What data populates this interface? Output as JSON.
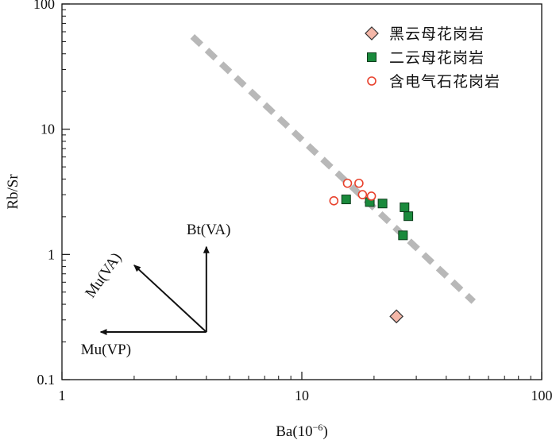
{
  "chart_data": {
    "type": "scatter",
    "xscale": "log",
    "yscale": "log",
    "xlim": [
      1,
      100
    ],
    "ylim": [
      0.1,
      100
    ],
    "xlabel": "Ba(10",
    "xlabel_exp": "−6",
    "xlabel_close": ")",
    "ylabel": "Rb/Sr",
    "xticks": [
      1,
      10,
      100
    ],
    "yticks": [
      0.1,
      1,
      10,
      100
    ],
    "xtick_labels": [
      "1",
      "10",
      "100"
    ],
    "ytick_labels": [
      "0.1",
      "1",
      "10",
      "100"
    ],
    "grid": false,
    "legend_position": "top-right",
    "series": [
      {
        "name": "黑云母花岗岩",
        "marker": "diamond",
        "color": "#f4b7a8",
        "stroke": "#333333",
        "points": [
          [
            24.8,
            0.32
          ]
        ]
      },
      {
        "name": "二云母花岗岩",
        "marker": "square",
        "color": "#1a8a3c",
        "stroke": "#0c3d1b",
        "points": [
          [
            15.3,
            2.75
          ],
          [
            19.2,
            2.62
          ],
          [
            21.7,
            2.55
          ],
          [
            26.8,
            2.38
          ],
          [
            27.8,
            2.02
          ],
          [
            26.4,
            1.42
          ]
        ]
      },
      {
        "name": "含电气石花岗岩",
        "marker": "open-circle",
        "color": "#e8412c",
        "stroke": "#e8412c",
        "points": [
          [
            13.6,
            2.68
          ],
          [
            15.5,
            3.7
          ],
          [
            17.3,
            3.7
          ],
          [
            17.9,
            3.0
          ],
          [
            19.5,
            2.92
          ]
        ]
      }
    ],
    "trend_line": {
      "style": "dashed",
      "color": "#b8b8b8",
      "points": [
        [
          3.5,
          55
        ],
        [
          52,
          0.42
        ]
      ]
    },
    "vectors": {
      "origin": [
        4.0,
        0.24
      ],
      "items": [
        {
          "label": "Bt(VA)",
          "tip": [
            4.0,
            1.15
          ]
        },
        {
          "label": "Mu(VA)",
          "tip": [
            2.0,
            0.82
          ]
        },
        {
          "label": "Mu(VP)",
          "tip": [
            1.45,
            0.24
          ]
        }
      ]
    }
  }
}
